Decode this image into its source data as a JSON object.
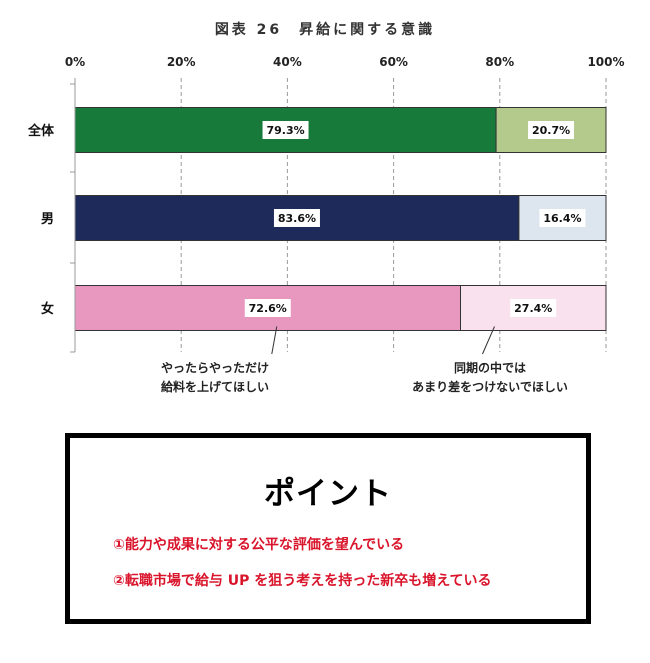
{
  "chart_data": {
    "type": "bar",
    "orientation": "horizontal",
    "stacked": true,
    "title": "図表 26　昇給に関する意識",
    "categories": [
      "全体",
      "男",
      "女"
    ],
    "x_ticks": [
      "0%",
      "20%",
      "40%",
      "60%",
      "80%",
      "100%"
    ],
    "xlim": [
      0,
      100
    ],
    "grid": "vertical dashed",
    "series": [
      {
        "values": [
          79.3,
          83.6,
          72.6
        ],
        "labels": [
          "79.3%",
          "83.6%",
          "72.6%"
        ],
        "colors": [
          "#177a3b",
          "#1e2a5a",
          "#e897bf"
        ]
      },
      {
        "values": [
          20.7,
          16.4,
          27.4
        ],
        "labels": [
          "20.7%",
          "16.4%",
          "27.4%"
        ],
        "colors": [
          "#b4c98c",
          "#dde6ef",
          "#fae1ee"
        ]
      }
    ],
    "annotations": [
      {
        "lines": [
          "やったらやっただけ",
          "給料を上げてほしい"
        ],
        "category": "女",
        "value": 38
      },
      {
        "lines": [
          "同期の中では",
          "あまり差をつけないでほしい"
        ],
        "category": "女",
        "value": 79
      }
    ]
  },
  "point": {
    "title": "ポイント",
    "items": [
      "①能力や成果に対する公平な評価を望んでいる",
      "②転職市場で給与 UP を狙う考えを持った新卒も増えている"
    ]
  }
}
